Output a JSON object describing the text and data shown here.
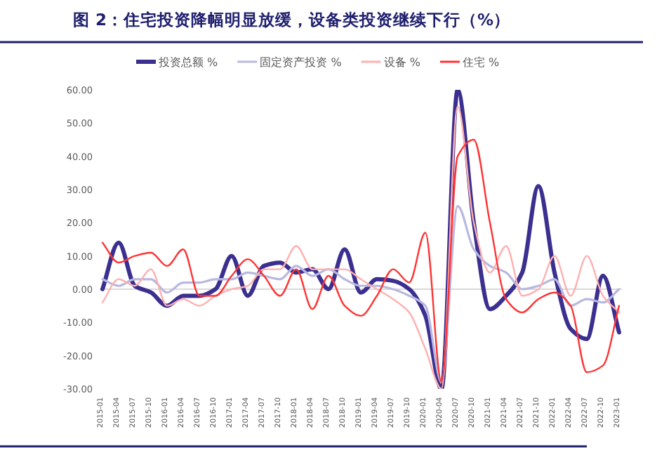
{
  "chart_data": {
    "type": "line",
    "title": "图 2：住宅投资降幅明显放缓，设备类投资继续下行（%）",
    "categories": [
      "2015-01",
      "2015-04",
      "2015-07",
      "2015-10",
      "2016-01",
      "2016-04",
      "2016-07",
      "2016-10",
      "2017-01",
      "2017-04",
      "2017-07",
      "2017-10",
      "2018-01",
      "2018-04",
      "2018-07",
      "2018-10",
      "2019-01",
      "2019-04",
      "2019-07",
      "2019-10",
      "2020-01",
      "2020-04",
      "2020-07",
      "2020-10",
      "2021-01",
      "2021-04",
      "2021-07",
      "2021-10",
      "2022-01",
      "2022-04",
      "2022-07",
      "2022-10",
      "2023-01"
    ],
    "series": [
      {
        "name": "投资总额 %",
        "color": "#3b2f8f",
        "values": [
          0,
          14,
          1,
          -1,
          -5,
          -2,
          -2,
          0,
          10,
          -2,
          7,
          8,
          5,
          6,
          0,
          12,
          -1,
          3,
          2.5,
          0,
          -8,
          -30,
          60,
          20,
          -6,
          -2,
          5,
          31,
          5,
          -12,
          -15,
          4,
          -13
        ]
      },
      {
        "name": "固定资产投资 %",
        "color": "#b8b8e0",
        "values": [
          3,
          1,
          3,
          3,
          -1,
          2,
          2,
          3,
          3,
          5,
          4,
          3,
          7,
          4,
          6,
          3,
          1,
          1,
          0,
          -2,
          -5,
          -28,
          25,
          12,
          7,
          5,
          0,
          1,
          3,
          -5,
          -3,
          -4,
          0
        ]
      },
      {
        "name": "设备 %",
        "color": "#ffb0b0",
        "values": [
          -4,
          3,
          1,
          6,
          -5,
          -3,
          -5,
          -2,
          0,
          1,
          6,
          6,
          13,
          6,
          6,
          6,
          3,
          0,
          -3,
          -7,
          -18,
          -30,
          55,
          20,
          5,
          13,
          -2,
          0,
          10,
          -2,
          10,
          -2,
          -7
        ]
      },
      {
        "name": "住宅 %",
        "color": "#ff3333",
        "values": [
          14,
          8,
          10,
          11,
          7,
          12,
          -2,
          -2,
          4,
          9,
          4,
          -2,
          6,
          -6,
          4,
          -5,
          -8,
          -2,
          6,
          2,
          17,
          -28,
          40,
          45,
          20,
          -3,
          -7,
          -3,
          -1,
          -5,
          -25,
          -23,
          -5
        ]
      }
    ],
    "ylim": [
      -30,
      60
    ],
    "yticks": [
      {
        "value": -30,
        "label": "-30.00"
      },
      {
        "value": -20,
        "label": "-20.00"
      },
      {
        "value": -10,
        "label": "-10.00"
      },
      {
        "value": 0,
        "label": "0.00"
      },
      {
        "value": 10,
        "label": "10.00"
      },
      {
        "value": 20,
        "label": "20.00"
      },
      {
        "value": 30,
        "label": "30.00"
      },
      {
        "value": 40,
        "label": "40.00"
      },
      {
        "value": 50,
        "label": "50.00"
      },
      {
        "value": 60,
        "label": "60.00"
      }
    ],
    "ref_lines": [
      {
        "axis": "y",
        "value": 0,
        "color": "#d9d9d9"
      }
    ],
    "legend": "top"
  }
}
